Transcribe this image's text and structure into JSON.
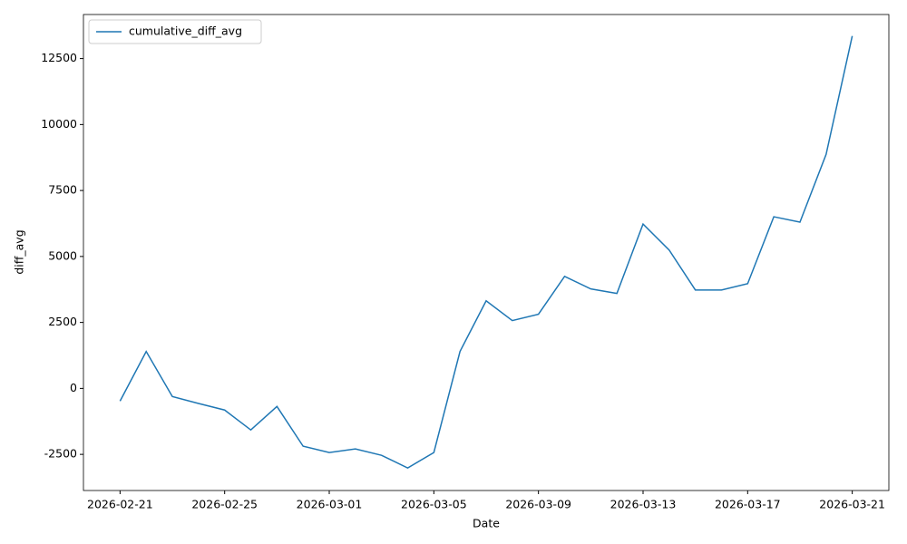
{
  "chart_data": {
    "type": "line",
    "x_label": "Date",
    "y_label": "diff_avg",
    "x": [
      "2026-02-21",
      "2026-02-22",
      "2026-02-23",
      "2026-02-24",
      "2026-02-25",
      "2026-02-26",
      "2026-02-27",
      "2026-02-28",
      "2026-03-01",
      "2026-03-02",
      "2026-03-03",
      "2026-03-04",
      "2026-03-05",
      "2026-03-06",
      "2026-03-07",
      "2026-03-08",
      "2026-03-09",
      "2026-03-10",
      "2026-03-11",
      "2026-03-12",
      "2026-03-13",
      "2026-03-14",
      "2026-03-15",
      "2026-03-16",
      "2026-03-17",
      "2026-03-18",
      "2026-03-19",
      "2026-03-20",
      "2026-03-21"
    ],
    "series": [
      {
        "name": "cumulative_diff_avg",
        "color": "#1f77b4",
        "values": [
          -480,
          1400,
          -310,
          -570,
          -820,
          -1575,
          -685,
          -2190,
          -2430,
          -2295,
          -2535,
          -3015,
          -2430,
          1400,
          3320,
          2570,
          2810,
          4245,
          3770,
          3600,
          6230,
          5240,
          3730,
          3730,
          3970,
          6505,
          6300,
          8870,
          13355
        ]
      }
    ],
    "xlim": [
      "2026-02-19T14:24",
      "2026-03-22T09:36"
    ],
    "xticks": [
      "2026-02-21",
      "2026-02-25",
      "2026-03-01",
      "2026-03-05",
      "2026-03-09",
      "2026-03-13",
      "2026-03-17",
      "2026-03-21"
    ],
    "ylim": [
      -3870,
      14170
    ],
    "yticks": [
      -2500,
      0,
      2500,
      5000,
      7500,
      10000,
      12500
    ],
    "grid": false,
    "legend": "upper left"
  }
}
